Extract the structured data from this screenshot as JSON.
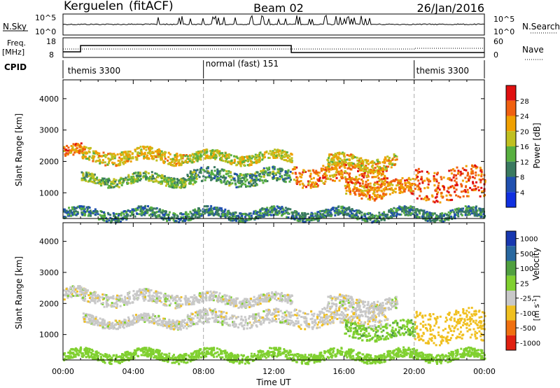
{
  "header": {
    "station": "Kerguelen",
    "algorithm": "(fitACF)",
    "beam": "Beam 02",
    "date": "26/Jan/2016"
  },
  "labels": {
    "nsky": "N.Sky",
    "nsearch": "N.Search",
    "freq": "Freq.",
    "freq_unit": "[MHz]",
    "nave": "Nave",
    "cpid": "CPID",
    "slant_range": "Slant Range [km]",
    "power": "Power [dB]",
    "velocity_label": "Velocity",
    "velocity_unit": "[m s",
    "velocity_unit_exp": "-1",
    "velocity_unit_close": "]",
    "time_axis": "Time UT"
  },
  "noise_ticks": {
    "left": [
      "10^5",
      "10^0"
    ],
    "right": [
      "10^5",
      "10^0"
    ]
  },
  "freq_ticks": {
    "left": [
      "18",
      "8"
    ],
    "right": [
      "60",
      "0"
    ]
  },
  "cpid_segments": [
    {
      "label": "themis 3300",
      "start_hour": 0.15
    },
    {
      "label": "normal (fast) 151",
      "start_hour": 8.0
    },
    {
      "label": "themis 3300",
      "start_hour": 20.0
    }
  ],
  "cpid_dividers_hours": [
    8.0,
    20.0
  ],
  "time_ticks": [
    "00:00",
    "04:00",
    "08:00",
    "12:00",
    "16:00",
    "20:00",
    "00:00"
  ],
  "range_ticks": [
    "1000",
    "2000",
    "3000",
    "4000"
  ],
  "chart_data": {
    "type": "heatmap",
    "x_range_hours": [
      0,
      24
    ],
    "y_range_km": [
      180,
      4600
    ],
    "power_scale": {
      "label": "Power [dB]",
      "ticks": [
        "4",
        "8",
        "12",
        "16",
        "20",
        "24",
        "28"
      ],
      "colors": [
        "#1030e0",
        "#2050b0",
        "#3a7a60",
        "#58b040",
        "#c0c020",
        "#f0a000",
        "#f06010",
        "#e01010"
      ]
    },
    "velocity_scale": {
      "label": "Velocity [m s-1]",
      "ticks": [
        "1000",
        "500",
        "100",
        "25",
        "-25",
        "-100",
        "-500",
        "-1000"
      ],
      "colors": [
        "#1838b0",
        "#2868a0",
        "#50a040",
        "#80d030",
        "#c8c8c8",
        "#f0c020",
        "#f07010",
        "#e02010"
      ]
    },
    "echo_bands": [
      {
        "t0": 0.0,
        "t1": 1.0,
        "r0": 2150,
        "r1": 2500,
        "power": 24,
        "velocity": 0
      },
      {
        "t0": 1.0,
        "t1": 7.0,
        "r0": 2000,
        "r1": 2400,
        "power": 20,
        "velocity": 0
      },
      {
        "t0": 1.0,
        "t1": 7.0,
        "r0": 1300,
        "r1": 1600,
        "power": 14,
        "velocity": 0
      },
      {
        "t0": 7.0,
        "t1": 13.0,
        "r0": 2000,
        "r1": 2300,
        "power": 18,
        "velocity": 0
      },
      {
        "t0": 7.0,
        "t1": 13.0,
        "r0": 1300,
        "r1": 1750,
        "power": 12,
        "velocity": 0
      },
      {
        "t0": 13.0,
        "t1": 18.5,
        "r0": 1300,
        "r1": 1900,
        "power": 24,
        "velocity": -10
      },
      {
        "t0": 15.0,
        "t1": 19.0,
        "r0": 1800,
        "r1": 2200,
        "power": 20,
        "velocity": 0
      },
      {
        "t0": 16.0,
        "t1": 20.0,
        "r0": 900,
        "r1": 1400,
        "power": 24,
        "velocity": 80
      },
      {
        "t0": 20.0,
        "t1": 24.0,
        "r0": 800,
        "r1": 1800,
        "power": 26,
        "velocity": -200
      },
      {
        "t0": 0.0,
        "t1": 24.0,
        "r0": 200,
        "r1": 500,
        "power": 10,
        "velocity": 60
      }
    ]
  }
}
